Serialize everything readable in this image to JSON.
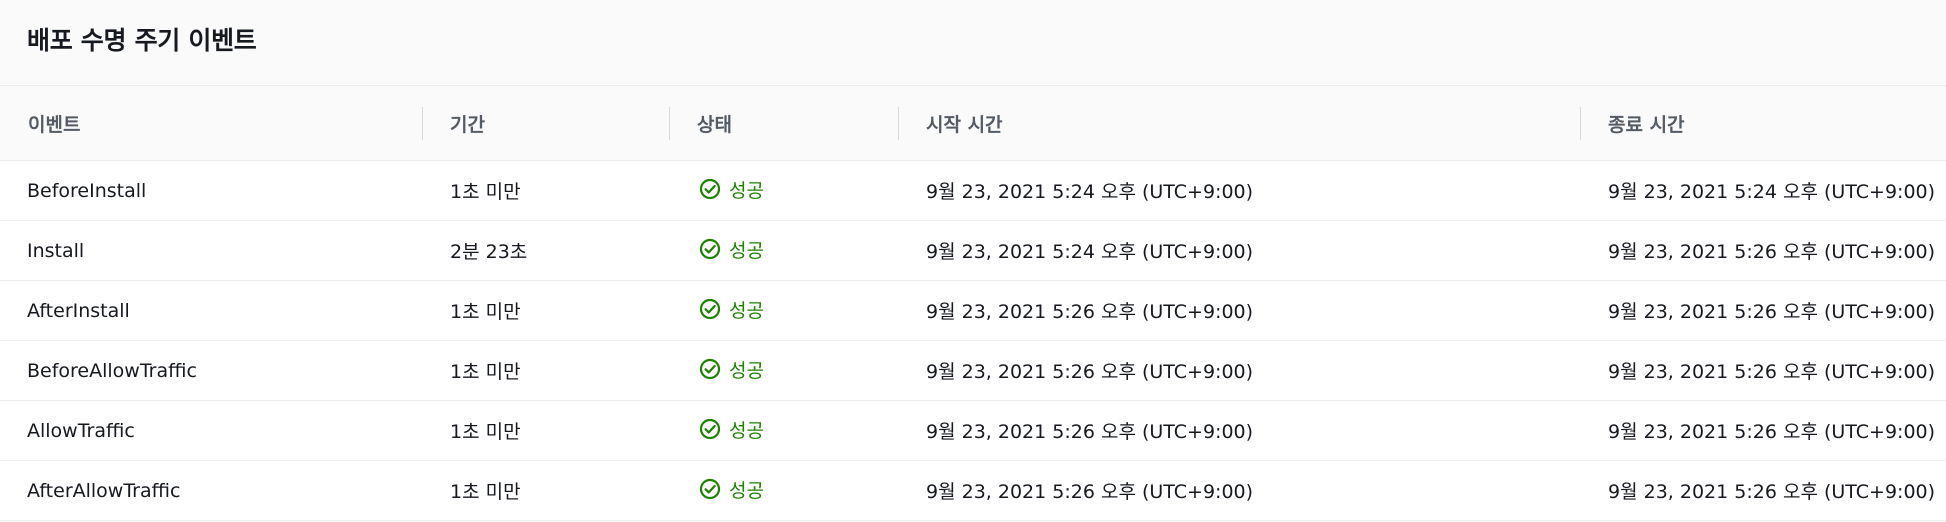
{
  "panel": {
    "title": "배포 수명 주기 이벤트"
  },
  "colors": {
    "success": "#1d8102",
    "header_bg": "#fafafa",
    "border": "#eaeded"
  },
  "table": {
    "headers": [
      "이벤트",
      "기간",
      "상태",
      "시작 시간",
      "종료 시간"
    ],
    "rows": [
      {
        "event": "BeforeInstall",
        "duration": "1초 미만",
        "status": "성공",
        "status_icon": "check-circle-icon",
        "start": "9월 23, 2021 5:24 오후 (UTC+9:00)",
        "end": "9월 23, 2021 5:24 오후 (UTC+9:00)"
      },
      {
        "event": "Install",
        "duration": "2분 23초",
        "status": "성공",
        "status_icon": "check-circle-icon",
        "start": "9월 23, 2021 5:24 오후 (UTC+9:00)",
        "end": "9월 23, 2021 5:26 오후 (UTC+9:00)"
      },
      {
        "event": "AfterInstall",
        "duration": "1초 미만",
        "status": "성공",
        "status_icon": "check-circle-icon",
        "start": "9월 23, 2021 5:26 오후 (UTC+9:00)",
        "end": "9월 23, 2021 5:26 오후 (UTC+9:00)"
      },
      {
        "event": "BeforeAllowTraffic",
        "duration": "1초 미만",
        "status": "성공",
        "status_icon": "check-circle-icon",
        "start": "9월 23, 2021 5:26 오후 (UTC+9:00)",
        "end": "9월 23, 2021 5:26 오후 (UTC+9:00)"
      },
      {
        "event": "AllowTraffic",
        "duration": "1초 미만",
        "status": "성공",
        "status_icon": "check-circle-icon",
        "start": "9월 23, 2021 5:26 오후 (UTC+9:00)",
        "end": "9월 23, 2021 5:26 오후 (UTC+9:00)"
      },
      {
        "event": "AfterAllowTraffic",
        "duration": "1초 미만",
        "status": "성공",
        "status_icon": "check-circle-icon",
        "start": "9월 23, 2021 5:26 오후 (UTC+9:00)",
        "end": "9월 23, 2021 5:26 오후 (UTC+9:00)"
      }
    ]
  }
}
